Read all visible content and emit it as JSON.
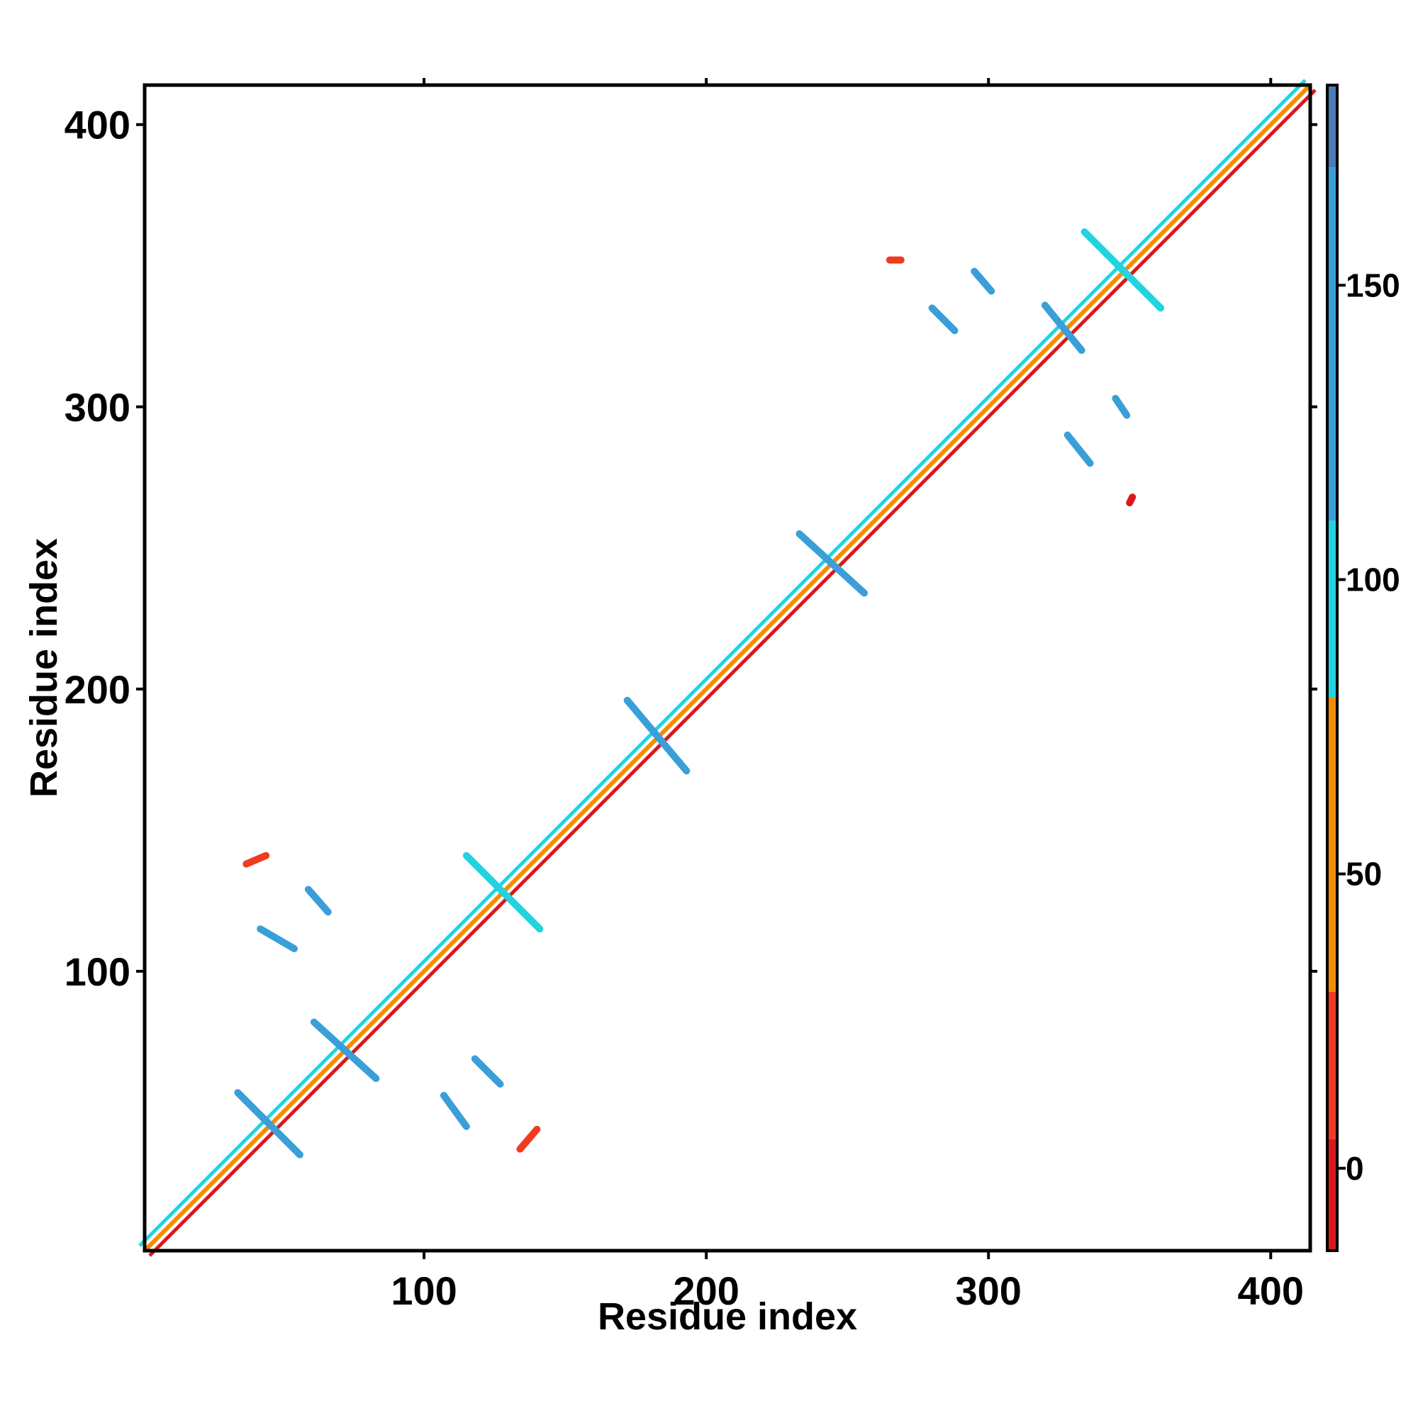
{
  "chart_data": {
    "type": "heatmap",
    "title": "",
    "xlabel": "Residue index",
    "ylabel": "Residue index",
    "xlim": [
      1,
      414
    ],
    "ylim": [
      1,
      414
    ],
    "x_ticks": [
      100,
      200,
      300,
      400
    ],
    "y_ticks": [
      100,
      200,
      300,
      400
    ],
    "grid": false,
    "legend": "colorbar-right",
    "colorbar": {
      "range": [
        -14,
        184
      ],
      "ticks": [
        0,
        50,
        100,
        150
      ],
      "bands": [
        {
          "from": -14,
          "to": 5,
          "color": "#d7191c"
        },
        {
          "from": 5,
          "to": 30,
          "color": "#f03b20"
        },
        {
          "from": 30,
          "to": 80,
          "color": "#f28c00"
        },
        {
          "from": 80,
          "to": 110,
          "color": "#22d3e0"
        },
        {
          "from": 110,
          "to": 170,
          "color": "#3a9fd8"
        },
        {
          "from": 170,
          "to": 184,
          "color": "#4a7bb7"
        },
        {
          "from": 184,
          "to": 200,
          "color": "#ffffff"
        }
      ]
    },
    "diagonal": {
      "from": 1,
      "to": 414,
      "colors": [
        "#d7191c",
        "#f28c00",
        "#22d3e0"
      ]
    },
    "features": [
      {
        "start": [
          34,
          57
        ],
        "end": [
          56,
          35
        ],
        "color": "#3a9fd8"
      },
      {
        "start": [
          61,
          82
        ],
        "end": [
          83,
          62
        ],
        "color": "#3a9fd8"
      },
      {
        "start": [
          115,
          141
        ],
        "end": [
          141,
          115
        ],
        "color": "#22d3e0"
      },
      {
        "start": [
          172,
          196
        ],
        "end": [
          193,
          171
        ],
        "color": "#3a9fd8"
      },
      {
        "start": [
          233,
          255
        ],
        "end": [
          256,
          234
        ],
        "color": "#3a9fd8"
      },
      {
        "start": [
          320,
          336
        ],
        "end": [
          333,
          320
        ],
        "color": "#3a9fd8"
      },
      {
        "start": [
          334,
          362
        ],
        "end": [
          361,
          335
        ],
        "color": "#22d3e0"
      },
      {
        "start": [
          42,
          115
        ],
        "end": [
          54,
          108
        ],
        "color": "#3a9fd8"
      },
      {
        "start": [
          59,
          129
        ],
        "end": [
          66,
          121
        ],
        "color": "#3a9fd8"
      },
      {
        "start": [
          37,
          138
        ],
        "end": [
          44,
          141
        ],
        "color": "#f03b20"
      },
      {
        "start": [
          107,
          56
        ],
        "end": [
          115,
          45
        ],
        "color": "#3a9fd8"
      },
      {
        "start": [
          118,
          69
        ],
        "end": [
          127,
          60
        ],
        "color": "#3a9fd8"
      },
      {
        "start": [
          134,
          37
        ],
        "end": [
          140,
          44
        ],
        "color": "#f03b20"
      },
      {
        "start": [
          280,
          335
        ],
        "end": [
          288,
          327
        ],
        "color": "#3a9fd8"
      },
      {
        "start": [
          295,
          348
        ],
        "end": [
          301,
          341
        ],
        "color": "#3a9fd8"
      },
      {
        "start": [
          265,
          352
        ],
        "end": [
          269,
          352
        ],
        "color": "#f03b20"
      },
      {
        "start": [
          328,
          290
        ],
        "end": [
          336,
          280
        ],
        "color": "#3a9fd8"
      },
      {
        "start": [
          345,
          303
        ],
        "end": [
          349,
          297
        ],
        "color": "#3a9fd8"
      },
      {
        "start": [
          350,
          266
        ],
        "end": [
          351,
          268
        ],
        "color": "#d7191c"
      }
    ]
  }
}
